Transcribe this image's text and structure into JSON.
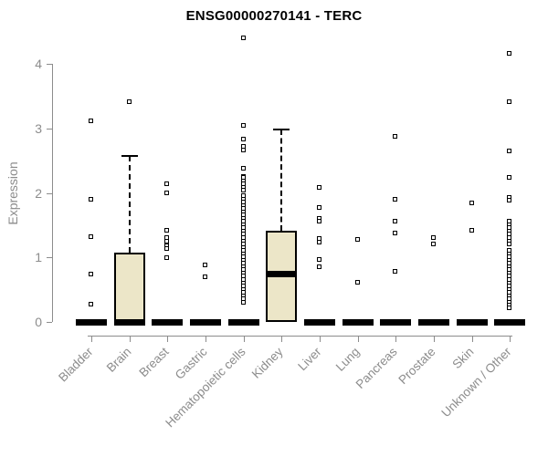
{
  "chart_data": {
    "type": "boxplot",
    "title": "ENSG00000270141 - TERC",
    "xlabel": "",
    "ylabel": "Expression",
    "ylim": [
      0,
      4.4
    ],
    "yticks": [
      0,
      1,
      2,
      3,
      4
    ],
    "grid": false,
    "legend": "none",
    "colors": {
      "box_fill": "#ece6c8",
      "box_border": "#000000",
      "median": "#000000",
      "outlier": "#000000",
      "axis": "#8c8c8c",
      "title": "#000000",
      "background": "#ffffff"
    },
    "categories": [
      "Bladder",
      "Brain",
      "Breast",
      "Gastric",
      "Hematopoietic cells",
      "Kidney",
      "Liver",
      "Lung",
      "Pancreas",
      "Prostate",
      "Skin",
      "Unknown / Other"
    ],
    "series": [
      {
        "category": "Bladder",
        "whisker_low": 0,
        "q1": 0,
        "median": 0,
        "q3": 0,
        "whisker_high": 0,
        "outliers": [
          3.11,
          1.89,
          1.31,
          0.73,
          0.27
        ]
      },
      {
        "category": "Brain",
        "whisker_low": 0,
        "q1": 0,
        "median": 0,
        "q3": 1.07,
        "whisker_high": 2.57,
        "outliers": [
          3.41
        ]
      },
      {
        "category": "Breast",
        "whisker_low": 0,
        "q1": 0,
        "median": 0,
        "q3": 0,
        "whisker_high": 0,
        "outliers": [
          2.13,
          1.99,
          1.42,
          1.3,
          1.24,
          1.18,
          1.13,
          0.99
        ]
      },
      {
        "category": "Gastric",
        "whisker_low": 0,
        "q1": 0,
        "median": 0,
        "q3": 0,
        "whisker_high": 0,
        "outliers": [
          0.87,
          0.69
        ]
      },
      {
        "category": "Hematopoietic cells",
        "whisker_low": 0,
        "q1": 0,
        "median": 0,
        "q3": 0,
        "whisker_high": 0,
        "outliers": [
          4.39,
          3.04,
          2.83,
          2.71,
          2.66,
          2.38,
          2.25,
          2.23,
          2.18,
          2.13,
          2.08,
          2.03,
          1.95,
          1.9,
          1.85,
          1.8,
          1.75,
          1.7,
          1.65,
          1.6,
          1.55,
          1.5,
          1.45,
          1.4,
          1.35,
          1.3,
          1.25,
          1.2,
          1.15,
          1.1,
          1.05,
          1.0,
          0.95,
          0.9,
          0.85,
          0.8,
          0.75,
          0.7,
          0.65,
          0.6,
          0.55,
          0.5,
          0.45,
          0.4,
          0.35,
          0.3
        ]
      },
      {
        "category": "Kidney",
        "whisker_low": 0,
        "q1": 0,
        "median": 0.75,
        "q3": 1.42,
        "whisker_high": 2.98,
        "outliers": []
      },
      {
        "category": "Liver",
        "whisker_low": 0,
        "q1": 0,
        "median": 0,
        "q3": 0,
        "whisker_high": 0,
        "outliers": [
          2.08,
          1.76,
          1.6,
          1.55,
          1.28,
          1.23,
          0.96,
          0.85
        ]
      },
      {
        "category": "Lung",
        "whisker_low": 0,
        "q1": 0,
        "median": 0,
        "q3": 0,
        "whisker_high": 0,
        "outliers": [
          1.27,
          0.61
        ]
      },
      {
        "category": "Pancreas",
        "whisker_low": 0,
        "q1": 0,
        "median": 0,
        "q3": 0,
        "whisker_high": 0,
        "outliers": [
          2.87,
          1.89,
          1.56,
          1.37,
          0.78
        ]
      },
      {
        "category": "Prostate",
        "whisker_low": 0,
        "q1": 0,
        "median": 0,
        "q3": 0,
        "whisker_high": 0,
        "outliers": [
          1.3,
          1.2
        ]
      },
      {
        "category": "Skin",
        "whisker_low": 0,
        "q1": 0,
        "median": 0,
        "q3": 0,
        "whisker_high": 0,
        "outliers": [
          1.84,
          1.41
        ]
      },
      {
        "category": "Unknown / Other",
        "whisker_low": 0,
        "q1": 0,
        "median": 0,
        "q3": 0,
        "whisker_high": 0,
        "outliers": [
          4.16,
          3.4,
          2.64,
          2.23,
          1.92,
          1.88,
          1.55,
          1.5,
          1.45,
          1.4,
          1.35,
          1.3,
          1.25,
          1.2,
          1.1,
          1.05,
          1.0,
          0.95,
          0.9,
          0.85,
          0.8,
          0.75,
          0.7,
          0.65,
          0.6,
          0.55,
          0.5,
          0.45,
          0.4,
          0.35,
          0.3,
          0.25,
          0.21
        ]
      }
    ]
  }
}
